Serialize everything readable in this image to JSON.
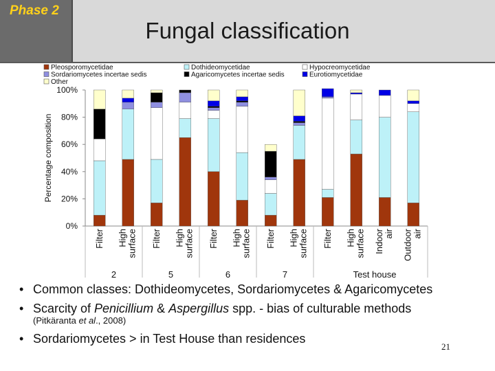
{
  "header": {
    "phase_label": "Phase 2",
    "title": "Fungal classification"
  },
  "chart_data": {
    "type": "bar",
    "stacked": true,
    "ylabel": "Percentage composition",
    "ylim": [
      0,
      100
    ],
    "yticks": [
      "0%",
      "20%",
      "40%",
      "60%",
      "80%",
      "100%"
    ],
    "legend_position": "top",
    "categories": [
      "Filter",
      "High surface",
      "Filter",
      "High surface",
      "Filter",
      "High surface",
      "Filter",
      "High surface",
      "Filter",
      "High surface",
      "Indoor air",
      "Outdoor air"
    ],
    "groups": [
      {
        "label": "2",
        "from": 0,
        "to": 1
      },
      {
        "label": "5",
        "from": 2,
        "to": 3
      },
      {
        "label": "6",
        "from": 4,
        "to": 5
      },
      {
        "label": "7",
        "from": 6,
        "to": 7
      },
      {
        "label": "Test house",
        "from": 8,
        "to": 11
      }
    ],
    "series": [
      {
        "name": "Pleosporomycetidae",
        "color": "#a0360c",
        "values": [
          8,
          49,
          17,
          65,
          40,
          19,
          8,
          49,
          21,
          53,
          21,
          17
        ]
      },
      {
        "name": "Dothideomycetidae",
        "color": "#bdf1f8",
        "values": [
          40,
          37,
          32,
          14,
          39,
          35,
          16,
          25,
          6,
          25,
          59,
          67
        ]
      },
      {
        "name": "Hypocreomycetidae",
        "color": "#ffffff",
        "values": [
          16,
          0,
          38,
          12,
          6,
          34,
          10,
          0,
          67,
          19,
          16,
          6
        ]
      },
      {
        "name": "Sordariomycetes incertae sedis",
        "color": "#8f8fe0",
        "values": [
          0,
          5,
          4,
          7,
          2,
          3,
          2,
          2,
          1,
          0,
          0,
          0
        ]
      },
      {
        "name": "Agaricomycetes incertae sedis",
        "color": "#000000",
        "values": [
          22,
          0,
          7,
          2,
          1,
          1,
          19,
          1,
          0,
          0,
          0,
          0
        ]
      },
      {
        "name": "Eurotiomycetidae",
        "color": "#0000e6",
        "values": [
          0,
          3,
          0,
          0,
          4,
          3,
          0,
          4,
          6,
          1,
          4,
          2
        ]
      },
      {
        "name": "Other",
        "color": "#ffffcc",
        "values": [
          14,
          6,
          2,
          0,
          8,
          5,
          5,
          19,
          0,
          2,
          0,
          8
        ]
      }
    ]
  },
  "bullets": [
    {
      "text": "Common classes: Dothideomycetes, Sordariomycetes & Agaricomycetes"
    },
    {
      "pre": "Scarcity of ",
      "italic1": "Penicillium",
      "mid": " & ",
      "italic2": "Aspergillus",
      "post": " spp. - bias of culturable methods",
      "cite_pre": "(Pitkäranta ",
      "cite_it": "et al",
      "cite_post": "., 2008)"
    },
    {
      "text": "Sordariomycetes > in Test House than residences"
    }
  ],
  "page_number": "21"
}
